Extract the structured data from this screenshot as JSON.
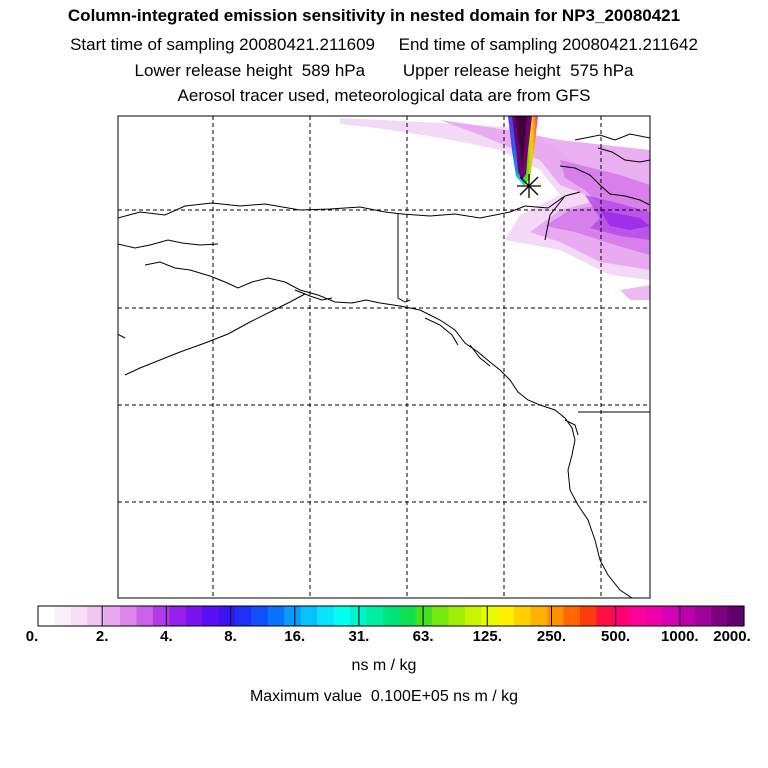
{
  "header": {
    "title": "Column-integrated emission sensitivity in nested domain for NP3_20080421",
    "line2": "Start time of sampling 20080421.211609     End time of sampling 20080421.211642",
    "line3": "Lower release height  589 hPa        Upper release height  575 hPa",
    "line4": "Aerosol tracer used, meteorological data are from GFS"
  },
  "colorbar": {
    "tick_labels": [
      "0.",
      "2.",
      "4.",
      "8.",
      "16.",
      "31.",
      "63.",
      "125.",
      "250.",
      "500.",
      "1000.",
      "2000."
    ],
    "colors": [
      "#ffffff",
      "#fbeffb",
      "#f7dff7",
      "#f0c6f0",
      "#e8a8ee",
      "#dc86ea",
      "#cc60e8",
      "#b23cea",
      "#9620ec",
      "#7a14ec",
      "#5a10f0",
      "#3c14f4",
      "#2030f8",
      "#1050fa",
      "#0874fc",
      "#089cfc",
      "#08c0fc",
      "#08e4fc",
      "#00ffee",
      "#00f4c8",
      "#00eea0",
      "#00e47c",
      "#10e050",
      "#44e024",
      "#74e810",
      "#a0ee08",
      "#c8f400",
      "#e8fa00",
      "#fff000",
      "#ffd000",
      "#ffb000",
      "#ff9000",
      "#ff6800",
      "#ff3c10",
      "#ff1040",
      "#ff0070",
      "#ff0098",
      "#f000aa",
      "#d800b4",
      "#bc00b0",
      "#a0009c",
      "#800084",
      "#60006c"
    ],
    "unit": "ns m / kg",
    "max_value_text": "Maximum value  0.100E+05 ns m / kg"
  },
  "map": {
    "marker": "release-point-star-icon",
    "gridlines": "dashed"
  }
}
